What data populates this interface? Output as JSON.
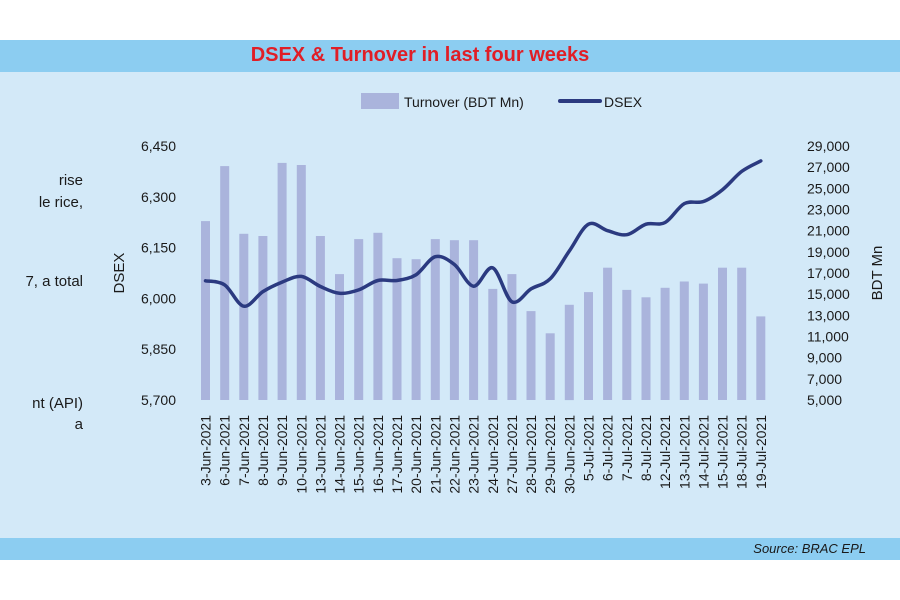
{
  "side_text": [
    "rise",
    "le rice,",
    "7, a total",
    "nt (API)",
    "a"
  ],
  "chart_data": {
    "type": "bar+line",
    "title": "DSEX & Turnover in last four weeks",
    "source": "Source: BRAC EPL",
    "categories": [
      "3-Jun-2021",
      "6-Jun-2021",
      "7-Jun-2021",
      "8-Jun-2021",
      "9-Jun-2021",
      "10-Jun-2021",
      "13-Jun-2021",
      "14-Jun-2021",
      "15-Jun-2021",
      "16-Jun-2021",
      "17-Jun-2021",
      "20-Jun-2021",
      "21-Jun-2021",
      "22-Jun-2021",
      "23-Jun-2021",
      "24-Jun-2021",
      "27-Jun-2021",
      "28-Jun-2021",
      "29-Jun-2021",
      "30-Jun-2021",
      "5-Jul-2021",
      "6-Jul-2021",
      "7-Jul-2021",
      "8-Jul-2021",
      "12-Jul-2021",
      "13-Jul-2021",
      "14-Jul-2021",
      "15-Jul-2021",
      "18-Jul-2021",
      "19-Jul-2021"
    ],
    "series": [
      {
        "name": "Turnover (BDT Mn)",
        "type": "bar",
        "axis": "right",
        "color": "#aab4dc",
        "values": [
          21900,
          27100,
          20700,
          20500,
          27400,
          27200,
          20500,
          16900,
          20200,
          20800,
          18400,
          18300,
          20200,
          20100,
          20100,
          15500,
          16900,
          13400,
          11300,
          14000,
          15200,
          17500,
          15400,
          14700,
          15600,
          16200,
          16000,
          17500,
          17500,
          12900
        ]
      },
      {
        "name": "DSEX",
        "type": "line",
        "axis": "left",
        "color": "#2b3a80",
        "values": [
          6052,
          6040,
          5977,
          6020,
          6048,
          6065,
          6035,
          6015,
          6025,
          6053,
          6053,
          6070,
          6123,
          6100,
          6036,
          6090,
          5990,
          6028,
          6058,
          6140,
          6219,
          6200,
          6188,
          6219,
          6224,
          6280,
          6286,
          6321,
          6375,
          6406
        ]
      }
    ],
    "left_axis": {
      "label": "DSEX",
      "min": 5700,
      "max": 6450,
      "ticks": [
        "5,700",
        "5,850",
        "6,000",
        "6,150",
        "6,300",
        "6,450"
      ]
    },
    "right_axis": {
      "label": "BDT Mn",
      "min": 5000,
      "max": 29000,
      "ticks": [
        "5,000",
        "7,000",
        "9,000",
        "11,000",
        "13,000",
        "15,000",
        "17,000",
        "19,000",
        "21,000",
        "23,000",
        "25,000",
        "27,000",
        "29,000"
      ]
    },
    "legend": [
      "Turnover (BDT Mn)",
      "DSEX"
    ],
    "legend_position": "top"
  }
}
